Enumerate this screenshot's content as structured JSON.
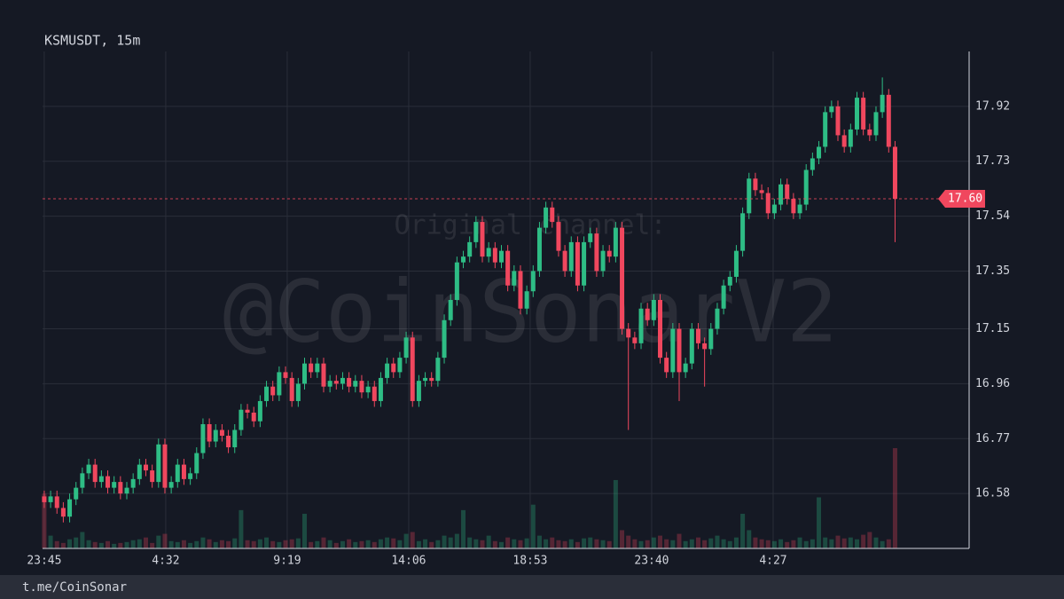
{
  "chart_data": {
    "type": "candlestick",
    "title": "KSMUSDT, 15m",
    "x": [
      0,
      15,
      30,
      45,
      60,
      75,
      90,
      105,
      120,
      135,
      150,
      165,
      180,
      195,
      210,
      225,
      240,
      255,
      270,
      285,
      300,
      315,
      330,
      345,
      360,
      375,
      390,
      405,
      420,
      435,
      450,
      465,
      480,
      495,
      510,
      525,
      540,
      555,
      570,
      585,
      600,
      615,
      630,
      645,
      660,
      675,
      690,
      705,
      720,
      735,
      750,
      765,
      780,
      795,
      810,
      825,
      840,
      855,
      870,
      885,
      900,
      915,
      930,
      945,
      960,
      975,
      990,
      1005,
      1020,
      1035,
      1050,
      1065,
      1080,
      1095,
      1110,
      1125,
      1140,
      1155,
      1170,
      1185,
      1200,
      1215,
      1230,
      1245,
      1260,
      1275,
      1290,
      1305,
      1320,
      1335,
      1350,
      1365,
      1380,
      1395,
      1410,
      1425,
      1440,
      1455,
      1470,
      1485,
      1500,
      1515,
      1530,
      1545,
      1560,
      1575,
      1590,
      1605,
      1620,
      1635,
      1650,
      1665,
      1680,
      1695,
      1710,
      1725,
      1740,
      1755,
      1770,
      1785,
      1800,
      1815,
      1830,
      1845,
      1860,
      1875,
      1890,
      1905,
      1920,
      1935,
      1950,
      1965,
      1980,
      1995,
      2010
    ],
    "open": [
      16.57,
      16.55,
      16.57,
      16.53,
      16.5,
      16.56,
      16.6,
      16.65,
      16.68,
      16.62,
      16.64,
      16.6,
      16.62,
      16.58,
      16.6,
      16.63,
      16.68,
      16.66,
      16.62,
      16.75,
      16.6,
      16.62,
      16.68,
      16.63,
      16.65,
      16.72,
      16.82,
      16.76,
      16.8,
      16.78,
      16.74,
      16.8,
      16.87,
      16.86,
      16.83,
      16.9,
      16.95,
      16.92,
      17.0,
      16.98,
      16.9,
      16.96,
      17.03,
      17.0,
      17.03,
      16.95,
      16.97,
      16.96,
      16.98,
      16.95,
      16.97,
      16.93,
      16.95,
      16.9,
      16.98,
      17.03,
      17.0,
      17.05,
      17.12,
      16.9,
      16.97,
      16.98,
      16.97,
      17.05,
      17.18,
      17.25,
      17.38,
      17.4,
      17.45,
      17.52,
      17.4,
      17.43,
      17.38,
      17.42,
      17.3,
      17.35,
      17.22,
      17.28,
      17.35,
      17.5,
      17.57,
      17.52,
      17.42,
      17.35,
      17.45,
      17.3,
      17.45,
      17.48,
      17.35,
      17.42,
      17.4,
      17.5,
      17.15,
      17.12,
      17.1,
      17.22,
      17.18,
      17.25,
      17.05,
      17.0,
      17.15,
      17.0,
      17.03,
      17.15,
      17.1,
      17.08,
      17.15,
      17.22,
      17.3,
      17.33,
      17.42,
      17.55,
      17.67,
      17.63,
      17.62,
      17.55,
      17.58,
      17.65,
      17.6,
      17.55,
      17.58,
      17.7,
      17.74,
      17.78,
      17.9,
      17.92,
      17.82,
      17.78,
      17.84,
      17.95,
      17.84,
      17.82,
      17.9,
      17.96,
      17.78
    ],
    "high": [
      16.59,
      16.59,
      16.59,
      16.55,
      16.58,
      16.62,
      16.67,
      16.7,
      16.7,
      16.66,
      16.66,
      16.64,
      16.64,
      16.62,
      16.65,
      16.7,
      16.7,
      16.68,
      16.77,
      16.77,
      16.64,
      16.7,
      16.7,
      16.67,
      16.74,
      16.84,
      16.84,
      16.82,
      16.82,
      16.8,
      16.82,
      16.89,
      16.89,
      16.88,
      16.92,
      16.97,
      16.97,
      17.02,
      17.02,
      17.0,
      16.98,
      17.05,
      17.05,
      17.05,
      17.05,
      16.99,
      16.99,
      17.0,
      17.0,
      16.99,
      16.99,
      16.97,
      16.97,
      17.0,
      17.05,
      17.05,
      17.07,
      17.14,
      17.14,
      16.99,
      17.0,
      17.0,
      17.07,
      17.2,
      17.27,
      17.4,
      17.42,
      17.47,
      17.54,
      17.54,
      17.45,
      17.45,
      17.44,
      17.44,
      17.37,
      17.37,
      17.3,
      17.37,
      17.52,
      17.59,
      17.59,
      17.54,
      17.44,
      17.47,
      17.47,
      17.47,
      17.5,
      17.5,
      17.44,
      17.44,
      17.52,
      17.52,
      17.17,
      17.14,
      17.24,
      17.24,
      17.27,
      17.27,
      17.07,
      17.17,
      17.17,
      17.05,
      17.17,
      17.17,
      17.12,
      17.17,
      17.24,
      17.32,
      17.35,
      17.44,
      17.57,
      17.69,
      17.69,
      17.65,
      17.64,
      17.6,
      17.67,
      17.67,
      17.62,
      17.6,
      17.72,
      17.76,
      17.8,
      17.92,
      17.94,
      17.94,
      17.84,
      17.86,
      17.97,
      17.97,
      17.86,
      17.92,
      18.02,
      17.98,
      17.8
    ],
    "low": [
      16.53,
      16.53,
      16.51,
      16.48,
      16.48,
      16.54,
      16.58,
      16.63,
      16.6,
      16.6,
      16.58,
      16.58,
      16.56,
      16.56,
      16.58,
      16.61,
      16.64,
      16.6,
      16.6,
      16.58,
      16.58,
      16.6,
      16.61,
      16.61,
      16.63,
      16.7,
      16.74,
      16.74,
      16.76,
      16.72,
      16.72,
      16.78,
      16.84,
      16.81,
      16.81,
      16.88,
      16.9,
      16.9,
      16.96,
      16.88,
      16.88,
      16.94,
      16.98,
      16.98,
      16.93,
      16.93,
      16.94,
      16.94,
      16.93,
      16.93,
      16.91,
      16.91,
      16.88,
      16.88,
      16.96,
      16.98,
      16.98,
      17.03,
      16.88,
      16.88,
      16.95,
      16.95,
      16.95,
      17.03,
      17.16,
      17.23,
      17.36,
      17.38,
      17.43,
      17.38,
      17.38,
      17.36,
      17.36,
      17.28,
      17.28,
      17.2,
      17.2,
      17.26,
      17.33,
      17.48,
      17.5,
      17.4,
      17.33,
      17.33,
      17.28,
      17.28,
      17.43,
      17.33,
      17.33,
      17.38,
      17.38,
      17.13,
      16.8,
      17.08,
      17.08,
      17.16,
      17.16,
      17.03,
      16.98,
      16.98,
      16.9,
      16.98,
      17.01,
      17.08,
      16.95,
      17.06,
      17.13,
      17.2,
      17.28,
      17.31,
      17.4,
      17.53,
      17.61,
      17.6,
      17.53,
      17.53,
      17.56,
      17.58,
      17.53,
      17.53,
      17.56,
      17.68,
      17.72,
      17.76,
      17.88,
      17.8,
      17.76,
      17.76,
      17.82,
      17.82,
      17.8,
      17.8,
      17.88,
      17.76,
      17.45
    ],
    "close": [
      16.55,
      16.57,
      16.53,
      16.5,
      16.56,
      16.6,
      16.65,
      16.68,
      16.62,
      16.64,
      16.6,
      16.62,
      16.58,
      16.6,
      16.63,
      16.68,
      16.66,
      16.62,
      16.75,
      16.6,
      16.62,
      16.68,
      16.63,
      16.65,
      16.72,
      16.82,
      16.76,
      16.8,
      16.78,
      16.74,
      16.8,
      16.87,
      16.86,
      16.83,
      16.9,
      16.95,
      16.92,
      17.0,
      16.98,
      16.9,
      16.96,
      17.03,
      17.0,
      17.03,
      16.95,
      16.97,
      16.96,
      16.98,
      16.95,
      16.97,
      16.93,
      16.95,
      16.9,
      16.98,
      17.03,
      17.0,
      17.05,
      17.12,
      16.9,
      16.97,
      16.98,
      16.97,
      17.05,
      17.18,
      17.25,
      17.38,
      17.4,
      17.45,
      17.52,
      17.4,
      17.43,
      17.38,
      17.42,
      17.3,
      17.35,
      17.22,
      17.28,
      17.35,
      17.5,
      17.57,
      17.52,
      17.42,
      17.35,
      17.45,
      17.3,
      17.45,
      17.48,
      17.35,
      17.42,
      17.4,
      17.5,
      17.15,
      17.12,
      17.1,
      17.22,
      17.18,
      17.25,
      17.05,
      17.0,
      17.15,
      17.0,
      17.03,
      17.15,
      17.1,
      17.08,
      17.15,
      17.22,
      17.3,
      17.33,
      17.42,
      17.55,
      17.67,
      17.63,
      17.62,
      17.55,
      17.58,
      17.65,
      17.6,
      17.55,
      17.58,
      17.7,
      17.74,
      17.78,
      17.9,
      17.92,
      17.82,
      17.78,
      17.84,
      17.95,
      17.84,
      17.82,
      17.9,
      17.96,
      17.78,
      17.6
    ],
    "volume": [
      60,
      14,
      8,
      6,
      10,
      12,
      18,
      9,
      7,
      6,
      8,
      5,
      6,
      7,
      9,
      10,
      12,
      6,
      14,
      16,
      8,
      7,
      9,
      6,
      8,
      12,
      10,
      7,
      9,
      8,
      11,
      42,
      9,
      8,
      10,
      12,
      8,
      7,
      9,
      10,
      11,
      38,
      7,
      8,
      12,
      9,
      6,
      8,
      10,
      7,
      8,
      9,
      7,
      10,
      12,
      11,
      9,
      16,
      18,
      8,
      10,
      7,
      9,
      14,
      12,
      16,
      42,
      12,
      10,
      9,
      14,
      8,
      7,
      12,
      10,
      9,
      11,
      48,
      14,
      10,
      12,
      9,
      8,
      10,
      7,
      11,
      12,
      10,
      9,
      8,
      75,
      20,
      14,
      10,
      8,
      9,
      12,
      14,
      10,
      9,
      16,
      8,
      10,
      12,
      9,
      11,
      14,
      10,
      8,
      12,
      38,
      20,
      12,
      10,
      9,
      8,
      10,
      7,
      9,
      12,
      8,
      10,
      56,
      12,
      10,
      14,
      11,
      12,
      10,
      15,
      18,
      12,
      8,
      10,
      110
    ],
    "xlim": [
      -4,
      2185
    ],
    "xticks": [
      {
        "value": 0,
        "label": "23:45"
      },
      {
        "value": 287,
        "label": "4:32"
      },
      {
        "value": 574,
        "label": "9:19"
      },
      {
        "value": 861,
        "label": "14:06"
      },
      {
        "value": 1148,
        "label": "18:53"
      },
      {
        "value": 1435,
        "label": "23:40"
      },
      {
        "value": 1722,
        "label": "4:27"
      }
    ],
    "ylim": [
      16.39,
      18.11
    ],
    "yticks": [
      16.58,
      16.77,
      16.96,
      17.15,
      17.35,
      17.54,
      17.73,
      17.92
    ],
    "last_price": {
      "value": 17.6,
      "label": "17.60"
    },
    "up_color": "#2ebd85",
    "down_color": "#f0475e",
    "grid": true,
    "watermark": [
      "Original channel:",
      "@CoinSonarV2"
    ]
  },
  "footer": "t.me/CoinSonar"
}
